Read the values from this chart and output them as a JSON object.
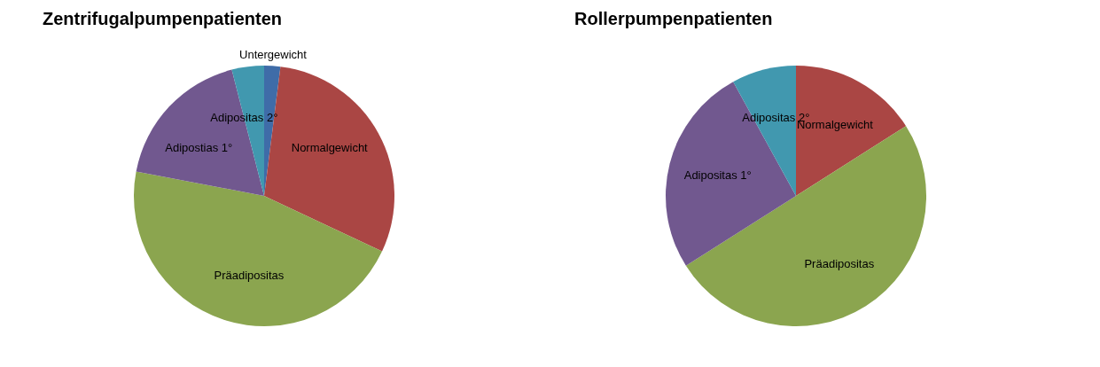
{
  "chart_data": [
    {
      "type": "pie",
      "title": "Zentrifugalpumpenpatienten",
      "categories": [
        "Untergewicht",
        "Normalgewicht",
        "Präadipositas",
        "Adipostias 1°",
        "Adipositas 2°"
      ],
      "values": [
        2,
        30,
        46,
        18,
        4
      ],
      "colors": [
        "#3f6ca8",
        "#aa4644",
        "#8ba54f",
        "#71588f",
        "#4198af"
      ],
      "legend": false
    },
    {
      "type": "pie",
      "title": "Rollerpumpenpatienten",
      "categories": [
        "Normalgewicht",
        "Präadipositas",
        "Adipositas 1°",
        "Adipositas 2°"
      ],
      "values": [
        16,
        50,
        26,
        8
      ],
      "colors": [
        "#aa4644",
        "#8ba54f",
        "#71588f",
        "#4198af"
      ],
      "legend": false
    }
  ]
}
